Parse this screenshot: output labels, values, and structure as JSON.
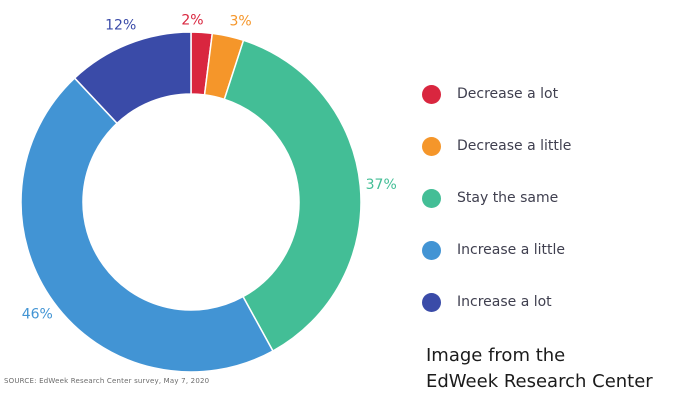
{
  "chart_data": {
    "type": "pie",
    "subtype": "donut",
    "categories": [
      "Decrease a lot",
      "Decrease a little",
      "Stay the same",
      "Increase a little",
      "Increase a lot"
    ],
    "values": [
      2,
      3,
      37,
      46,
      12
    ],
    "value_labels": [
      "2%",
      "3%",
      "37%",
      "46%",
      "12%"
    ],
    "colors": [
      "#d9263f",
      "#f5962a",
      "#43be96",
      "#4294d4",
      "#3a4ba8"
    ],
    "legend_position": "right"
  },
  "footer": {
    "source": "SOURCE: EdWeek Research Center survey, May 7, 2020",
    "credit_line1": "Image from the",
    "credit_line2": "EdWeek Research Center"
  }
}
